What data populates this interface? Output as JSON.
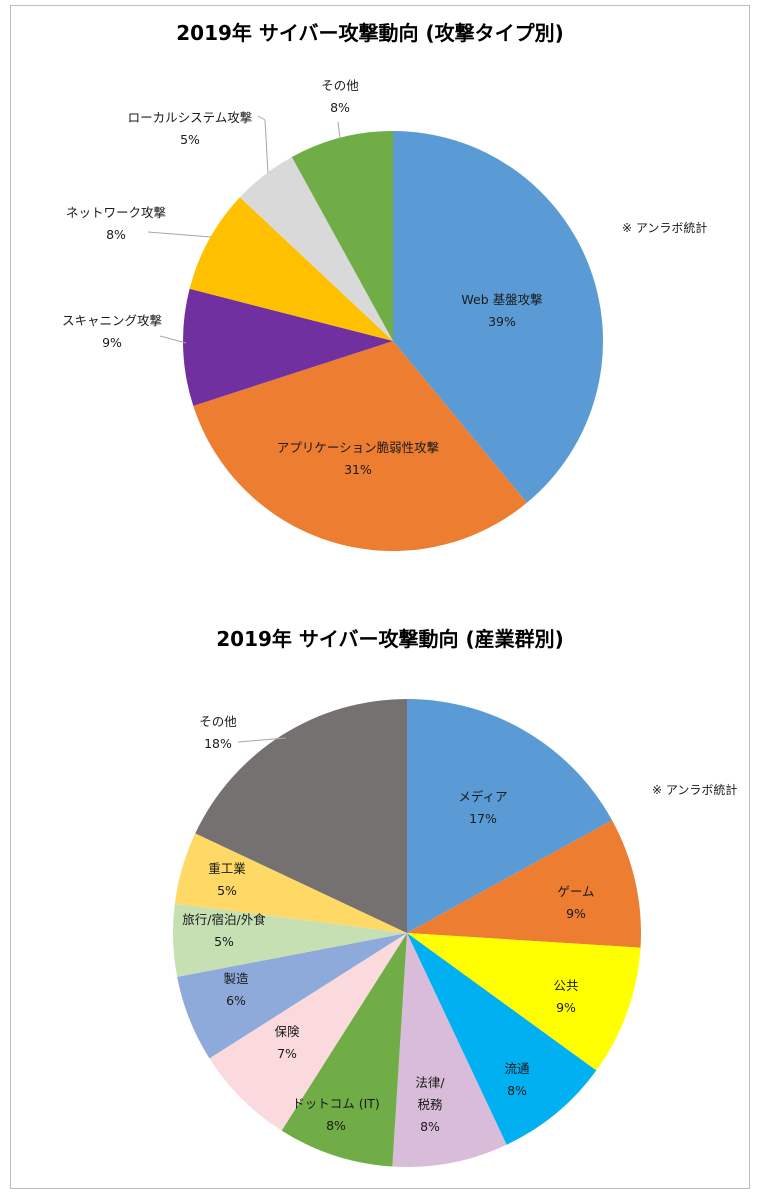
{
  "chart_data": [
    {
      "type": "pie",
      "title": "2019年 サイバー攻撃動向 (攻撃タイプ別)",
      "annotation": "※ アンラボ統計",
      "slices": [
        {
          "label": "Web 基盤攻撃",
          "value": 39,
          "value_label": "39%",
          "color": "#5b9bd5"
        },
        {
          "label": "アプリケーション脆弱性攻撃",
          "value": 31,
          "value_label": "31%",
          "color": "#ed7d31"
        },
        {
          "label": "スキャニング攻撃",
          "value": 9,
          "value_label": "9%",
          "color": "#7030a0"
        },
        {
          "label": "ネットワーク攻撃",
          "value": 8,
          "value_label": "8%",
          "color": "#ffc000"
        },
        {
          "label": "ローカルシステム攻撃",
          "value": 5,
          "value_label": "5%",
          "color": "#d9d9d9"
        },
        {
          "label": "その他",
          "value": 8,
          "value_label": "8%",
          "color": "#70ad47"
        }
      ]
    },
    {
      "type": "pie",
      "title": "2019年 サイバー攻撃動向 (産業群別)",
      "annotation": "※ アンラボ統計",
      "slices": [
        {
          "label": "メディア",
          "value": 17,
          "value_label": "17%",
          "color": "#5b9bd5"
        },
        {
          "label": "ゲーム",
          "value": 9,
          "value_label": "9%",
          "color": "#ed7d31"
        },
        {
          "label": "公共",
          "value": 9,
          "value_label": "9%",
          "color": "#ffff00"
        },
        {
          "label": "流通",
          "value": 8,
          "value_label": "8%",
          "color": "#00b0f0"
        },
        {
          "label": "法律/\n税務",
          "value": 8,
          "value_label": "8%",
          "color": "#d9bcd9"
        },
        {
          "label": "ドットコム (IT)",
          "value": 8,
          "value_label": "8%",
          "color": "#70ad47"
        },
        {
          "label": "保険",
          "value": 7,
          "value_label": "7%",
          "color": "#fadadd"
        },
        {
          "label": "製造",
          "value": 6,
          "value_label": "6%",
          "color": "#8eaadb"
        },
        {
          "label": "旅行/宿泊/外食",
          "value": 5,
          "value_label": "5%",
          "color": "#c6e0b4"
        },
        {
          "label": "重工業",
          "value": 5,
          "value_label": "5%",
          "color": "#ffd966"
        },
        {
          "label": "その他",
          "value": 18,
          "value_label": "18%",
          "color": "#767171"
        }
      ]
    }
  ]
}
